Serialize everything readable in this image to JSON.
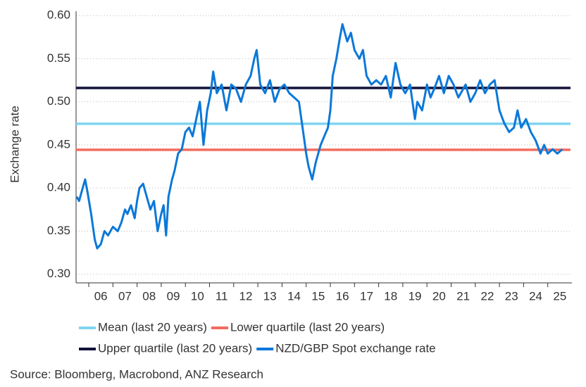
{
  "chart_data": {
    "type": "line",
    "y_label": "Exchange rate",
    "source": "Source: Bloomberg, Macrobond, ANZ Research",
    "xlim": [
      5.475,
      26.0
    ],
    "xticks": [
      {
        "value": 6,
        "label": "06"
      },
      {
        "value": 7,
        "label": "07"
      },
      {
        "value": 8,
        "label": "08"
      },
      {
        "value": 9,
        "label": "09"
      },
      10,
      11,
      12,
      13,
      14,
      15,
      16,
      17,
      18,
      19,
      20,
      21,
      22,
      23,
      24,
      25
    ],
    "ylim": [
      0.29,
      0.605
    ],
    "yticks": [
      {
        "value": 0.3,
        "label": "0.30"
      },
      0.35,
      {
        "value": 0.4,
        "label": "0.40"
      },
      0.45,
      {
        "value": 0.5,
        "label": "0.50"
      },
      0.55,
      {
        "value": 0.6,
        "label": "0.60"
      }
    ],
    "grid": true,
    "hlines": [
      {
        "name": "Mean (last 20 years)",
        "color": "#80d4ef",
        "value": 0.4745
      },
      {
        "name": "Lower quartile (last 20 years)",
        "color": "#f26c5e",
        "value": 0.4443
      },
      {
        "name": "Upper quartile (last 20 years)",
        "color": "#12123a",
        "value": 0.516
      }
    ],
    "series": [
      {
        "name": "NZD/GBP Spot exchange rate",
        "color": "#0b78d8",
        "x": [
          5.5,
          5.6,
          5.75,
          5.85,
          5.95,
          6.1,
          6.25,
          6.35,
          6.5,
          6.65,
          6.8,
          7.0,
          7.2,
          7.35,
          7.5,
          7.6,
          7.75,
          7.9,
          8.0,
          8.1,
          8.25,
          8.4,
          8.55,
          8.7,
          8.85,
          9.0,
          9.1,
          9.2,
          9.3,
          9.45,
          9.55,
          9.7,
          9.85,
          10.0,
          10.15,
          10.3,
          10.45,
          10.6,
          10.75,
          10.9,
          11.05,
          11.15,
          11.3,
          11.5,
          11.7,
          11.9,
          12.1,
          12.3,
          12.5,
          12.7,
          12.85,
          12.95,
          13.1,
          13.3,
          13.5,
          13.7,
          13.9,
          14.1,
          14.3,
          14.5,
          14.7,
          14.9,
          15.0,
          15.1,
          15.25,
          15.4,
          15.6,
          15.75,
          15.9,
          16.0,
          16.1,
          16.25,
          16.4,
          16.5,
          16.7,
          16.85,
          17.0,
          17.2,
          17.35,
          17.5,
          17.7,
          17.9,
          18.1,
          18.3,
          18.5,
          18.7,
          18.9,
          19.1,
          19.3,
          19.5,
          19.6,
          19.8,
          20.0,
          20.15,
          20.3,
          20.5,
          20.7,
          20.9,
          21.1,
          21.3,
          21.6,
          21.8,
          22.0,
          22.2,
          22.4,
          22.6,
          22.8,
          23.0,
          23.2,
          23.4,
          23.6,
          23.75,
          23.9,
          24.1,
          24.3,
          24.5,
          24.7,
          24.85,
          25.0,
          25.2,
          25.4,
          25.6
        ],
        "values": [
          0.39,
          0.385,
          0.4,
          0.41,
          0.395,
          0.37,
          0.34,
          0.33,
          0.335,
          0.35,
          0.345,
          0.355,
          0.35,
          0.36,
          0.375,
          0.37,
          0.38,
          0.365,
          0.385,
          0.4,
          0.405,
          0.39,
          0.375,
          0.385,
          0.35,
          0.37,
          0.38,
          0.345,
          0.39,
          0.41,
          0.42,
          0.44,
          0.445,
          0.465,
          0.47,
          0.46,
          0.48,
          0.5,
          0.45,
          0.49,
          0.51,
          0.535,
          0.51,
          0.52,
          0.49,
          0.52,
          0.515,
          0.5,
          0.52,
          0.53,
          0.55,
          0.56,
          0.52,
          0.51,
          0.525,
          0.5,
          0.515,
          0.52,
          0.51,
          0.505,
          0.5,
          0.46,
          0.44,
          0.425,
          0.41,
          0.43,
          0.45,
          0.46,
          0.47,
          0.49,
          0.53,
          0.55,
          0.575,
          0.59,
          0.57,
          0.58,
          0.56,
          0.55,
          0.56,
          0.53,
          0.52,
          0.525,
          0.52,
          0.53,
          0.505,
          0.545,
          0.52,
          0.51,
          0.52,
          0.48,
          0.5,
          0.49,
          0.52,
          0.505,
          0.515,
          0.53,
          0.51,
          0.53,
          0.52,
          0.505,
          0.52,
          0.5,
          0.51,
          0.525,
          0.51,
          0.52,
          0.525,
          0.49,
          0.475,
          0.465,
          0.47,
          0.49,
          0.47,
          0.48,
          0.465,
          0.455,
          0.44,
          0.45,
          0.44,
          0.445,
          0.44,
          0.445
        ]
      }
    ]
  }
}
